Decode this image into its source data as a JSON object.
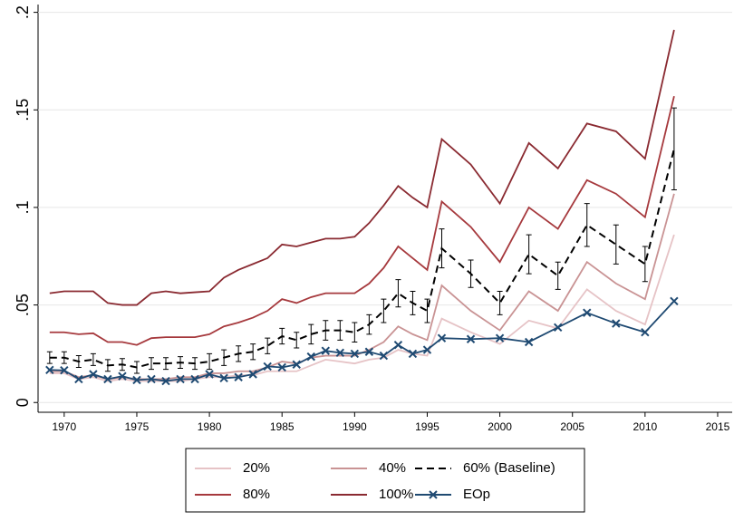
{
  "chart_data": {
    "type": "line",
    "x": [
      1969,
      1970,
      1971,
      1972,
      1973,
      1974,
      1975,
      1976,
      1977,
      1978,
      1979,
      1980,
      1981,
      1982,
      1983,
      1984,
      1985,
      1986,
      1987,
      1988,
      1989,
      1990,
      1991,
      1992,
      1993,
      1994,
      1995,
      1996,
      1998,
      2000,
      2002,
      2004,
      2006,
      2008,
      2010,
      2012
    ],
    "xlim": [
      1968.2,
      2016
    ],
    "xticks": [
      1970,
      1975,
      1980,
      1985,
      1990,
      1995,
      2000,
      2005,
      2010,
      2015
    ],
    "ylim": [
      -0.005,
      0.204
    ],
    "yticks": [
      {
        "value": 0,
        "label": "0"
      },
      {
        "value": 0.05,
        "label": ".05"
      },
      {
        "value": 0.1,
        "label": ".1"
      },
      {
        "value": 0.15,
        "label": ".15"
      },
      {
        "value": 0.2,
        "label": ".2"
      }
    ],
    "grid": true,
    "series": [
      {
        "name": "20%",
        "color": "#e6c3c6",
        "values": [
          0.015,
          0.015,
          0.012,
          0.013,
          0.011,
          0.012,
          0.011,
          0.011,
          0.011,
          0.011,
          0.012,
          0.013,
          0.013,
          0.014,
          0.014,
          0.016,
          0.016,
          0.016,
          0.019,
          0.022,
          0.021,
          0.02,
          0.022,
          0.023,
          0.027,
          0.025,
          0.024,
          0.043,
          0.036,
          0.03,
          0.042,
          0.038,
          0.058,
          0.047,
          0.04,
          0.086
        ]
      },
      {
        "name": "40%",
        "color": "#c99394",
        "values": [
          0.016,
          0.016,
          0.013,
          0.014,
          0.012,
          0.013,
          0.012,
          0.012,
          0.012,
          0.013,
          0.013,
          0.015,
          0.015,
          0.016,
          0.016,
          0.018,
          0.021,
          0.02,
          0.023,
          0.024,
          0.024,
          0.024,
          0.027,
          0.031,
          0.039,
          0.035,
          0.032,
          0.06,
          0.047,
          0.037,
          0.057,
          0.047,
          0.072,
          0.061,
          0.053,
          0.107
        ]
      },
      {
        "name": "60% (Baseline)",
        "color": "#000000",
        "dashed": true,
        "values": [
          0.023,
          0.023,
          0.021,
          0.022,
          0.019,
          0.0195,
          0.018,
          0.02,
          0.02,
          0.0205,
          0.02,
          0.021,
          0.023,
          0.025,
          0.026,
          0.029,
          0.034,
          0.032,
          0.035,
          0.037,
          0.037,
          0.036,
          0.04,
          0.047,
          0.056,
          0.051,
          0.047,
          0.079,
          0.066,
          0.051,
          0.076,
          0.065,
          0.091,
          0.081,
          0.071,
          0.13
        ],
        "errors": [
          0.003,
          0.003,
          0.003,
          0.003,
          0.003,
          0.003,
          0.003,
          0.003,
          0.003,
          0.003,
          0.003,
          0.004,
          0.004,
          0.004,
          0.004,
          0.004,
          0.004,
          0.004,
          0.005,
          0.005,
          0.005,
          0.005,
          0.005,
          0.006,
          0.007,
          0.006,
          0.006,
          0.01,
          0.007,
          0.006,
          0.01,
          0.007,
          0.011,
          0.01,
          0.009,
          0.021
        ]
      },
      {
        "name": "80%",
        "color": "#a6393d",
        "values": [
          0.036,
          0.036,
          0.035,
          0.0355,
          0.031,
          0.031,
          0.0295,
          0.033,
          0.0335,
          0.0335,
          0.0335,
          0.035,
          0.039,
          0.041,
          0.0435,
          0.047,
          0.053,
          0.051,
          0.054,
          0.056,
          0.056,
          0.056,
          0.061,
          0.069,
          0.08,
          0.074,
          0.068,
          0.103,
          0.09,
          0.072,
          0.1,
          0.089,
          0.114,
          0.107,
          0.095,
          0.157
        ]
      },
      {
        "name": "100%",
        "color": "#8a2a31",
        "values": [
          0.056,
          0.057,
          0.057,
          0.057,
          0.051,
          0.05,
          0.05,
          0.056,
          0.057,
          0.056,
          0.0565,
          0.057,
          0.064,
          0.068,
          0.071,
          0.074,
          0.081,
          0.08,
          0.082,
          0.084,
          0.084,
          0.085,
          0.092,
          0.101,
          0.111,
          0.105,
          0.1,
          0.135,
          0.122,
          0.102,
          0.133,
          0.12,
          0.143,
          0.139,
          0.125,
          0.191
        ]
      },
      {
        "name": "EOp",
        "color": "#1f4a72",
        "marker": "x",
        "values": [
          0.0167,
          0.0165,
          0.012,
          0.0145,
          0.012,
          0.0135,
          0.0115,
          0.012,
          0.011,
          0.012,
          0.012,
          0.0145,
          0.0125,
          0.013,
          0.0145,
          0.0185,
          0.018,
          0.0195,
          0.0235,
          0.0265,
          0.0255,
          0.025,
          0.026,
          0.024,
          0.0295,
          0.025,
          0.027,
          0.033,
          0.0325,
          0.033,
          0.031,
          0.0385,
          0.046,
          0.0405,
          0.036,
          0.052
        ]
      }
    ]
  }
}
